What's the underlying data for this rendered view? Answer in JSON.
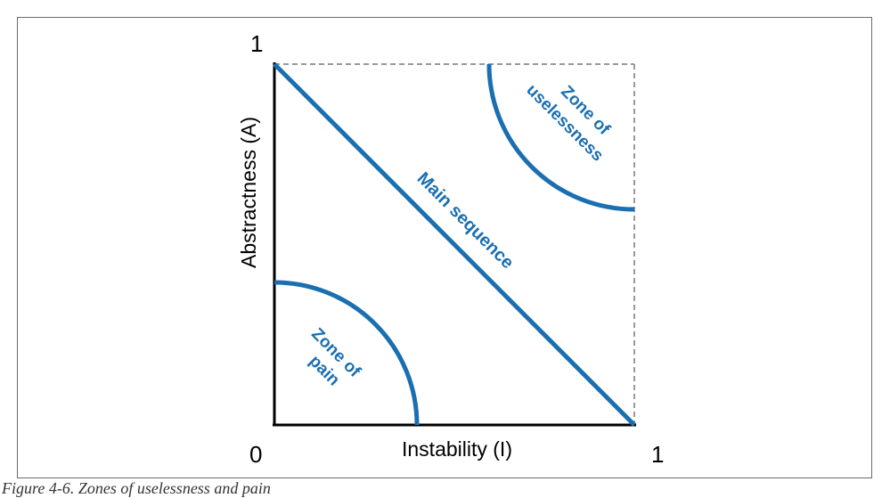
{
  "diagram": {
    "y_axis": {
      "label": "Abstractness (A)",
      "max_tick": "1"
    },
    "x_axis": {
      "label": "Instability (I)",
      "max_tick": "1"
    },
    "origin_tick": "0",
    "main_sequence_label": "Main sequence",
    "zone_of_pain": {
      "line1": "Zone of",
      "line2": "pain"
    },
    "zone_of_uselessness": {
      "line1": "Zone of",
      "line2": "uselessness"
    },
    "colors": {
      "accent": "#1a6fb0",
      "axis": "#000000",
      "frame": "#6b6b6b",
      "dashed": "#999999"
    }
  },
  "caption": "Figure 4-6. Zones of uselessness and pain"
}
